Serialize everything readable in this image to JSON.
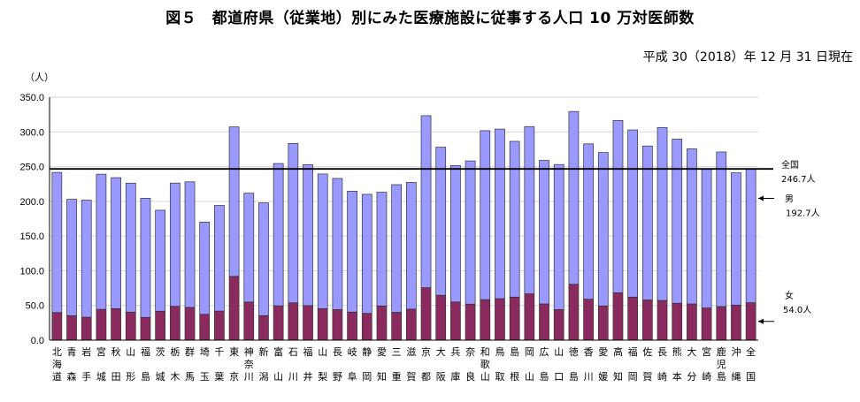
{
  "title": "図５　都道府県（従業地）別にみた医療施設に従事する人口 10 万対医師数",
  "date_note": "平成 30（2018）年 12 月 31 日現在",
  "chart_data": {
    "type": "bar",
    "stacked": true,
    "title": "図５　都道府県（従業地）別にみた医療施設に従事する人口 10 万対医師数",
    "ylabel": "（人）",
    "ylim": [
      0,
      350
    ],
    "yticks": [
      "0.0",
      "50.0",
      "100.0",
      "150.0",
      "200.0",
      "250.0",
      "300.0",
      "350.0"
    ],
    "grid": true,
    "categories": [
      "北海道",
      "青森",
      "岩手",
      "宮城",
      "秋田",
      "山形",
      "福島",
      "茨城",
      "栃木",
      "群馬",
      "埼玉",
      "千葉",
      "東京",
      "神奈川",
      "新潟",
      "富山",
      "石川",
      "福井",
      "山梨",
      "長野",
      "岐阜",
      "静岡",
      "愛知",
      "三重",
      "滋賀",
      "京都",
      "大阪",
      "兵庫",
      "奈良",
      "和歌山",
      "鳥取",
      "島根",
      "岡山",
      "広島",
      "山口",
      "徳島",
      "香川",
      "愛媛",
      "高知",
      "福岡",
      "佐賀",
      "長崎",
      "熊本",
      "大分",
      "宮崎",
      "鹿児島",
      "沖縄",
      "全国"
    ],
    "category_labels": [
      "北海道",
      "青森",
      "岩手",
      "宮城",
      "秋田",
      "山形",
      "福島",
      "茨城",
      "栃木",
      "群馬",
      "埼玉",
      "千葉",
      "東京",
      "神奈川",
      "新潟",
      "富山",
      "石川",
      "福井",
      "山梨",
      "長野",
      "岐阜",
      "静岡",
      "愛知",
      "三重",
      "滋賀",
      "京都",
      "大阪",
      "兵庫",
      "奈良",
      "和歌山",
      "鳥取",
      "島根",
      "岡山",
      "広島",
      "山口",
      "徳島",
      "香川",
      "愛媛",
      "高知",
      "福岡",
      "佐賀",
      "長崎",
      "熊本",
      "大分",
      "宮崎",
      "鹿児島",
      "沖縄",
      "全国"
    ],
    "series": [
      {
        "name": "女",
        "color": "#8B2A5E",
        "values": [
          39.8,
          35.3,
          33.1,
          44.4,
          45.4,
          40.4,
          32.8,
          41.7,
          48.8,
          47.2,
          37.3,
          41.8,
          91.9,
          54.9,
          35.3,
          49.5,
          53.8,
          49.8,
          45.4,
          44.0,
          40.5,
          38.6,
          49.3,
          40.1,
          44.7,
          75.6,
          64.6,
          55.0,
          51.9,
          58.4,
          59.8,
          62.0,
          66.7,
          52.2,
          44.1,
          80.5,
          59.0,
          49.3,
          68.3,
          62.0,
          57.9,
          57.1,
          53.2,
          52.2,
          46.4,
          48.5,
          50.5,
          54.0
        ]
      },
      {
        "name": "男",
        "color": "#9999FF",
        "values": [
          201.9,
          167.6,
          168.6,
          194.7,
          188.7,
          185.8,
          171.6,
          145.5,
          177.5,
          180.9,
          132.8,
          152.3,
          215.3,
          156.8,
          162.6,
          205.0,
          229.6,
          203.0,
          194.0,
          189.0,
          174.1,
          171.5,
          163.8,
          183.9,
          182.6,
          247.8,
          213.4,
          196.6,
          206.3,
          243.4,
          244.3,
          224.4,
          241.0,
          206.8,
          208.9,
          248.9,
          223.8,
          221.0,
          248.1,
          240.9,
          221.8,
          249.2,
          236.4,
          223.4,
          200.6,
          222.6,
          190.6,
          192.7
        ]
      }
    ],
    "reference_line": {
      "value": 246.7,
      "label": "全国"
    },
    "annotations": [
      {
        "label": "全国",
        "value_text": "246.7人"
      },
      {
        "label": "男",
        "value_text": "192.7人"
      },
      {
        "label": "女",
        "value_text": "54.0人"
      }
    ]
  }
}
